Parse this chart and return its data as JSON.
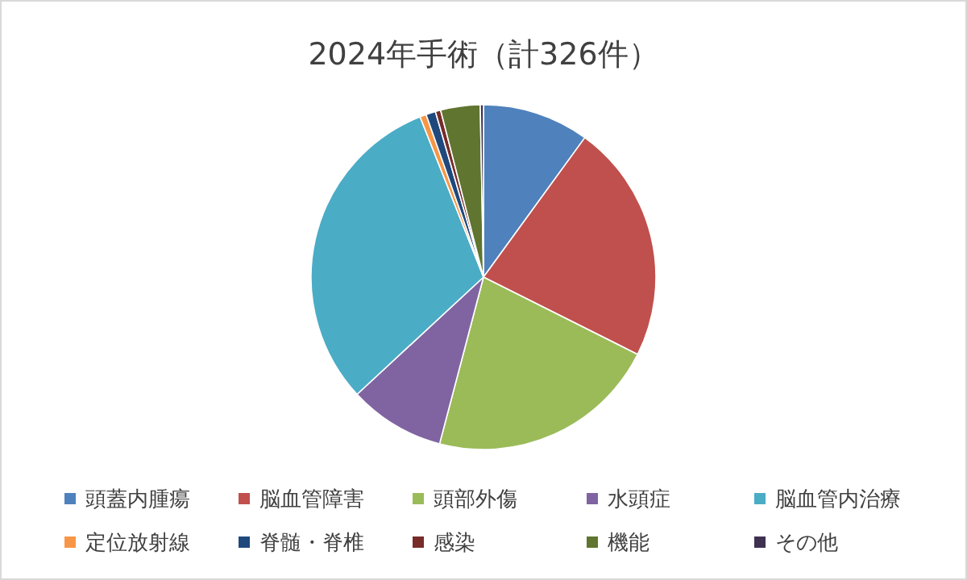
{
  "chart_data": {
    "type": "pie",
    "title": "2024年手術（計326件）",
    "categories": [
      "頭蓋内腫瘍",
      "脳血管障害",
      "頭部外傷",
      "水頭症",
      "脳血管内治療",
      "定位放射線",
      "脊髄・脊椎",
      "感染",
      "機能",
      "その他"
    ],
    "values": [
      10,
      22.4,
      21.7,
      9,
      30.9,
      0.6,
      0.9,
      0.5,
      3.7,
      0.3
    ],
    "colors": [
      "#4f81bd",
      "#c0504d",
      "#9bbb59",
      "#8064a2",
      "#4bacc6",
      "#f79646",
      "#1f497d",
      "#772c2a",
      "#5f7530",
      "#3f3151"
    ],
    "legend": "bottom"
  }
}
